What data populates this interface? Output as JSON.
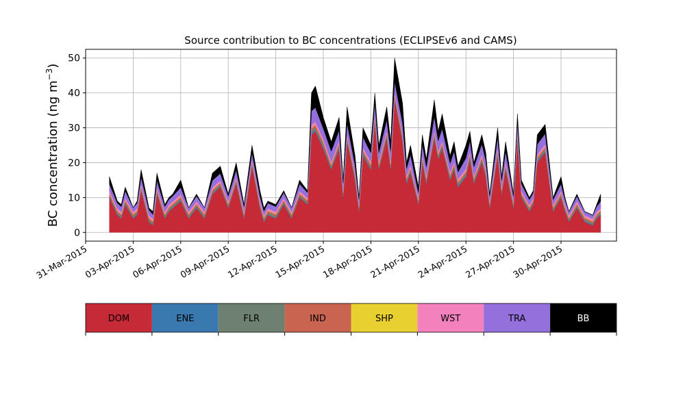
{
  "chart_data": {
    "type": "area",
    "stacked": true,
    "title": "Source contribution to BC concentrations (ECLIPSEv6 and CAMS)",
    "ylabel": "BC concentration (ng m",
    "ylabel_sup": "−3",
    "ylabel_close": ")",
    "ylim": [
      -2.5,
      52.5
    ],
    "xlim": [
      "2015-03-31T00:00",
      "2015-05-03T12:00"
    ],
    "yticks": [
      0,
      10,
      20,
      30,
      40,
      50
    ],
    "ytick_labels": [
      "0",
      "10",
      "20",
      "30",
      "40",
      "50"
    ],
    "xtick_labels": [
      "31-Mar-2015",
      "03-Apr-2015",
      "06-Apr-2015",
      "09-Apr-2015",
      "12-Apr-2015",
      "15-Apr-2015",
      "18-Apr-2015",
      "21-Apr-2015",
      "24-Apr-2015",
      "27-Apr-2015",
      "30-Apr-2015"
    ],
    "xticks_dates": [
      "2015-03-31",
      "2015-04-03",
      "2015-04-06",
      "2015-04-09",
      "2015-04-12",
      "2015-04-15",
      "2015-04-18",
      "2015-04-21",
      "2015-04-24",
      "2015-04-27",
      "2015-04-30"
    ],
    "grid": true,
    "legend": "colorbar below plot",
    "x": [
      "2015-04-01T12:00",
      "2015-04-02T00:00",
      "2015-04-02T06:00",
      "2015-04-02T12:00",
      "2015-04-03T00:00",
      "2015-04-03T06:00",
      "2015-04-03T12:00",
      "2015-04-04T00:00",
      "2015-04-04T06:00",
      "2015-04-04T12:00",
      "2015-04-05T00:00",
      "2015-04-05T06:00",
      "2015-04-05T12:00",
      "2015-04-06T00:00",
      "2015-04-06T12:00",
      "2015-04-07T00:00",
      "2015-04-07T12:00",
      "2015-04-08T00:00",
      "2015-04-08T12:00",
      "2015-04-09T00:00",
      "2015-04-09T12:00",
      "2015-04-10T00:00",
      "2015-04-10T12:00",
      "2015-04-11T00:00",
      "2015-04-11T06:00",
      "2015-04-11T12:00",
      "2015-04-12T00:00",
      "2015-04-12T12:00",
      "2015-04-13T00:00",
      "2015-04-13T12:00",
      "2015-04-14T00:00",
      "2015-04-14T06:00",
      "2015-04-14T12:00",
      "2015-04-15T00:00",
      "2015-04-15T12:00",
      "2015-04-16T00:00",
      "2015-04-16T06:00",
      "2015-04-16T12:00",
      "2015-04-17T00:00",
      "2015-04-17T06:00",
      "2015-04-17T12:00",
      "2015-04-18T00:00",
      "2015-04-18T06:00",
      "2015-04-18T12:00",
      "2015-04-19T00:00",
      "2015-04-19T06:00",
      "2015-04-19T12:00",
      "2015-04-20T00:00",
      "2015-04-20T06:00",
      "2015-04-20T12:00",
      "2015-04-21T00:00",
      "2015-04-21T06:00",
      "2015-04-21T12:00",
      "2015-04-22T00:00",
      "2015-04-22T06:00",
      "2015-04-22T12:00",
      "2015-04-23T00:00",
      "2015-04-23T06:00",
      "2015-04-23T12:00",
      "2015-04-24T00:00",
      "2015-04-24T06:00",
      "2015-04-24T12:00",
      "2015-04-25T00:00",
      "2015-04-25T06:00",
      "2015-04-25T12:00",
      "2015-04-26T00:00",
      "2015-04-26T06:00",
      "2015-04-26T12:00",
      "2015-04-27T00:00",
      "2015-04-27T06:00",
      "2015-04-27T12:00",
      "2015-04-28T00:00",
      "2015-04-28T06:00",
      "2015-04-28T12:00",
      "2015-04-29T00:00",
      "2015-04-29T12:00",
      "2015-04-30T00:00",
      "2015-04-30T06:00",
      "2015-04-30T12:00",
      "2015-05-01T00:00",
      "2015-05-01T12:00",
      "2015-05-02T00:00",
      "2015-05-02T06:00",
      "2015-05-02T12:00"
    ],
    "total": [
      16,
      9,
      8,
      13,
      7,
      9,
      18,
      7,
      6,
      17,
      8,
      10,
      11,
      15,
      7,
      11,
      7,
      17,
      19,
      11,
      20,
      8,
      25,
      12,
      7,
      9,
      8,
      12,
      7,
      15,
      12,
      40,
      42,
      33,
      26,
      33,
      15,
      36,
      22,
      10,
      30,
      25,
      40,
      25,
      36,
      26,
      50,
      37,
      20,
      25,
      13,
      28,
      21,
      38,
      29,
      34,
      22,
      26,
      19,
      25,
      29,
      20,
      28,
      23,
      11,
      30,
      16,
      26,
      11,
      34,
      15,
      10,
      12,
      28,
      31,
      10,
      16,
      10,
      6,
      11,
      6,
      5,
      8,
      11
    ],
    "series": [
      {
        "name": "DOM",
        "values": [
          10,
          5,
          4,
          8,
          4,
          5,
          12,
          3,
          2,
          11,
          4,
          6,
          7,
          9,
          4,
          7,
          4,
          11,
          13,
          7,
          14,
          4,
          19,
          7,
          3,
          5,
          4,
          8,
          4,
          10,
          8,
          28,
          29,
          24,
          18,
          24,
          10,
          26,
          15,
          6,
          22,
          18,
          32,
          18,
          27,
          18,
          38,
          26,
          14,
          17,
          8,
          20,
          14,
          27,
          21,
          24,
          15,
          18,
          13,
          16,
          21,
          14,
          20,
          16,
          7,
          22,
          11,
          18,
          7,
          27,
          10,
          6,
          8,
          20,
          23,
          6,
          10,
          6,
          3,
          7,
          3,
          2,
          4,
          5
        ]
      },
      {
        "name": "ENE",
        "values": [
          0.2,
          0.2,
          0.2,
          0.2,
          0.2,
          0.2,
          0.2,
          0.2,
          0.2,
          0.2,
          0.2,
          0.2,
          0.2,
          0.2,
          0.2,
          0.2,
          0.2,
          0.2,
          0.2,
          0.2,
          0.2,
          0.2,
          0.2,
          0.2,
          0.2,
          0.2,
          0.2,
          0.2,
          0.2,
          0.2,
          0.2,
          0.3,
          0.3,
          0.3,
          0.3,
          0.3,
          0.3,
          0.3,
          0.3,
          0.3,
          0.3,
          0.3,
          0.3,
          0.3,
          0.3,
          0.3,
          0.3,
          0.3,
          0.3,
          0.3,
          0.2,
          0.3,
          0.3,
          0.3,
          0.3,
          0.3,
          0.3,
          0.3,
          0.3,
          0.3,
          0.3,
          0.3,
          0.3,
          0.3,
          0.2,
          0.3,
          0.2,
          0.3,
          0.2,
          0.3,
          0.2,
          0.2,
          0.2,
          0.3,
          0.3,
          0.2,
          0.2,
          0.2,
          0.2,
          0.2,
          0.2,
          0.2,
          0.2,
          0.2
        ]
      },
      {
        "name": "FLR",
        "values": [
          0.5,
          0.5,
          0.5,
          0.5,
          0.5,
          0.5,
          0.5,
          0.5,
          0.5,
          0.5,
          0.5,
          0.5,
          0.5,
          0.5,
          0.5,
          0.5,
          0.5,
          0.5,
          0.5,
          0.5,
          0.5,
          0.5,
          0.5,
          0.5,
          0.5,
          0.5,
          0.5,
          0.5,
          0.5,
          0.5,
          0.5,
          0.8,
          0.8,
          0.8,
          0.6,
          0.6,
          0.6,
          0.6,
          0.6,
          0.5,
          0.6,
          0.6,
          0.6,
          0.6,
          0.6,
          0.6,
          0.6,
          0.6,
          0.6,
          0.6,
          0.5,
          0.6,
          0.6,
          0.6,
          0.6,
          0.6,
          0.6,
          0.6,
          0.6,
          0.6,
          0.6,
          0.6,
          0.6,
          0.6,
          0.5,
          0.6,
          0.5,
          0.6,
          0.5,
          0.6,
          0.5,
          0.5,
          0.5,
          0.6,
          0.6,
          0.5,
          0.5,
          0.5,
          0.5,
          0.5,
          0.5,
          0.5,
          0.5,
          0.5
        ]
      },
      {
        "name": "IND",
        "values": [
          0.5,
          0.5,
          0.5,
          0.5,
          0.5,
          0.5,
          0.5,
          0.5,
          0.5,
          0.5,
          0.5,
          0.5,
          0.5,
          0.5,
          0.5,
          0.5,
          0.5,
          0.5,
          0.5,
          0.5,
          0.5,
          0.5,
          0.5,
          0.5,
          0.5,
          0.5,
          0.5,
          0.5,
          0.5,
          0.5,
          0.5,
          0.8,
          0.8,
          0.8,
          0.6,
          0.6,
          0.6,
          0.6,
          0.6,
          0.5,
          0.6,
          0.6,
          0.6,
          0.6,
          0.6,
          0.6,
          0.6,
          0.6,
          0.6,
          0.6,
          0.5,
          0.6,
          0.6,
          0.6,
          0.6,
          0.6,
          0.6,
          0.6,
          0.6,
          0.6,
          0.6,
          0.6,
          0.6,
          0.6,
          0.5,
          0.6,
          0.5,
          0.6,
          0.5,
          0.6,
          0.5,
          0.5,
          0.5,
          0.6,
          0.6,
          0.5,
          0.5,
          0.5,
          0.5,
          0.5,
          0.5,
          0.5,
          0.5,
          0.5
        ]
      },
      {
        "name": "SHP",
        "values": [
          0.1,
          0.1,
          0.1,
          0.1,
          0.1,
          0.1,
          0.1,
          0.1,
          0.1,
          0.1,
          0.1,
          0.1,
          0.1,
          0.1,
          0.1,
          0.1,
          0.1,
          0.1,
          0.1,
          0.1,
          0.1,
          0.1,
          0.1,
          0.1,
          0.1,
          0.1,
          0.1,
          0.1,
          0.1,
          0.1,
          0.1,
          0.1,
          0.1,
          0.1,
          0.1,
          0.1,
          0.1,
          0.1,
          0.1,
          0.1,
          0.1,
          0.1,
          0.1,
          0.1,
          0.1,
          0.1,
          0.1,
          0.1,
          0.1,
          0.1,
          0.1,
          0.1,
          0.1,
          0.1,
          0.1,
          0.1,
          0.1,
          0.1,
          0.1,
          0.1,
          0.1,
          0.1,
          0.1,
          0.1,
          0.1,
          0.1,
          0.1,
          0.1,
          0.1,
          0.1,
          0.1,
          0.1,
          0.1,
          0.1,
          0.1,
          0.1,
          0.1,
          0.1,
          0.1,
          0.1,
          0.1,
          0.1,
          0.1,
          0.1
        ]
      },
      {
        "name": "WST",
        "values": [
          0.6,
          0.6,
          0.6,
          0.6,
          0.6,
          0.6,
          0.6,
          0.6,
          0.6,
          0.6,
          0.6,
          0.6,
          0.6,
          0.6,
          0.6,
          0.6,
          0.6,
          0.6,
          0.6,
          0.6,
          0.6,
          0.6,
          0.6,
          0.6,
          0.6,
          0.6,
          0.6,
          0.6,
          0.6,
          0.6,
          0.6,
          0.8,
          0.8,
          0.8,
          0.7,
          0.7,
          0.6,
          0.7,
          0.7,
          0.6,
          0.7,
          0.7,
          0.7,
          0.7,
          0.7,
          0.7,
          0.7,
          0.7,
          0.7,
          0.7,
          0.6,
          0.7,
          0.7,
          0.7,
          0.7,
          0.7,
          0.7,
          0.7,
          0.7,
          0.7,
          0.7,
          0.7,
          0.7,
          0.7,
          0.6,
          0.7,
          0.6,
          0.7,
          0.6,
          0.7,
          0.6,
          0.6,
          0.6,
          0.7,
          0.7,
          0.6,
          0.6,
          0.6,
          0.6,
          0.6,
          0.6,
          0.6,
          0.6,
          0.6
        ]
      },
      {
        "name": "TRA",
        "values": [
          2,
          1.5,
          1.5,
          2,
          1.2,
          1.5,
          2,
          1.5,
          1.2,
          2,
          1.5,
          1.5,
          1.5,
          2,
          1.2,
          1.5,
          1.2,
          2,
          2,
          1.5,
          2,
          1.5,
          2,
          1.5,
          1.2,
          1.5,
          1.5,
          1.5,
          1.2,
          2,
          1.5,
          4,
          4,
          3,
          3,
          3,
          2,
          3,
          2,
          1.5,
          3,
          2.5,
          3,
          2.5,
          3,
          3,
          3,
          3,
          2,
          3,
          1.5,
          3,
          2.5,
          4,
          3,
          3.5,
          2.5,
          3,
          2,
          3,
          3,
          2.5,
          3,
          2.5,
          1.5,
          3,
          2,
          3,
          1.5,
          2.5,
          2,
          1.5,
          1.5,
          3,
          3,
          1.5,
          2,
          1.5,
          1,
          1.5,
          1,
          1,
          1.5,
          2
        ]
      },
      {
        "name": "BB",
        "values": [
          2.1,
          0.6,
          0.6,
          1.1,
          0,
          0.6,
          2.7,
          0.6,
          0.9,
          2.6,
          0.7,
          1.6,
          1.6,
          2.7,
          0,
          1.6,
          0,
          2.6,
          2.1,
          0.6,
          2.1,
          0.6,
          1.1,
          1.6,
          0,
          0.6,
          0.7,
          1.1,
          0,
          1.1,
          0.6,
          5.2,
          6.2,
          2.2,
          2.7,
          3.7,
          0.8,
          4.7,
          2.7,
          0.5,
          2.7,
          1.7,
          2.7,
          1.7,
          3.7,
          2.7,
          6.7,
          5.7,
          1.7,
          2.7,
          1.6,
          2.7,
          1.7,
          4.7,
          2.7,
          4.2,
          2.2,
          2.7,
          1.7,
          3.7,
          2.7,
          1.2,
          2.7,
          1.7,
          0.6,
          2.7,
          1.1,
          2.7,
          0.6,
          2.2,
          1.1,
          0.6,
          0.6,
          2.7,
          2.7,
          0.6,
          2.1,
          0.6,
          0.1,
          0.6,
          0.1,
          0.1,
          0.6,
          2.1
        ]
      }
    ],
    "colorbar": [
      {
        "name": "DOM",
        "color": "#c62a36",
        "text_color": "#000000"
      },
      {
        "name": "ENE",
        "color": "#3a78b0",
        "text_color": "#000000"
      },
      {
        "name": "FLR",
        "color": "#6e8070",
        "text_color": "#000000"
      },
      {
        "name": "IND",
        "color": "#c86450",
        "text_color": "#000000"
      },
      {
        "name": "SHP",
        "color": "#e7d030",
        "text_color": "#000000"
      },
      {
        "name": "WST",
        "color": "#f281bd",
        "text_color": "#000000"
      },
      {
        "name": "TRA",
        "color": "#9370db",
        "text_color": "#000000"
      },
      {
        "name": "BB",
        "color": "#000000",
        "text_color": "#ffffff"
      }
    ]
  }
}
